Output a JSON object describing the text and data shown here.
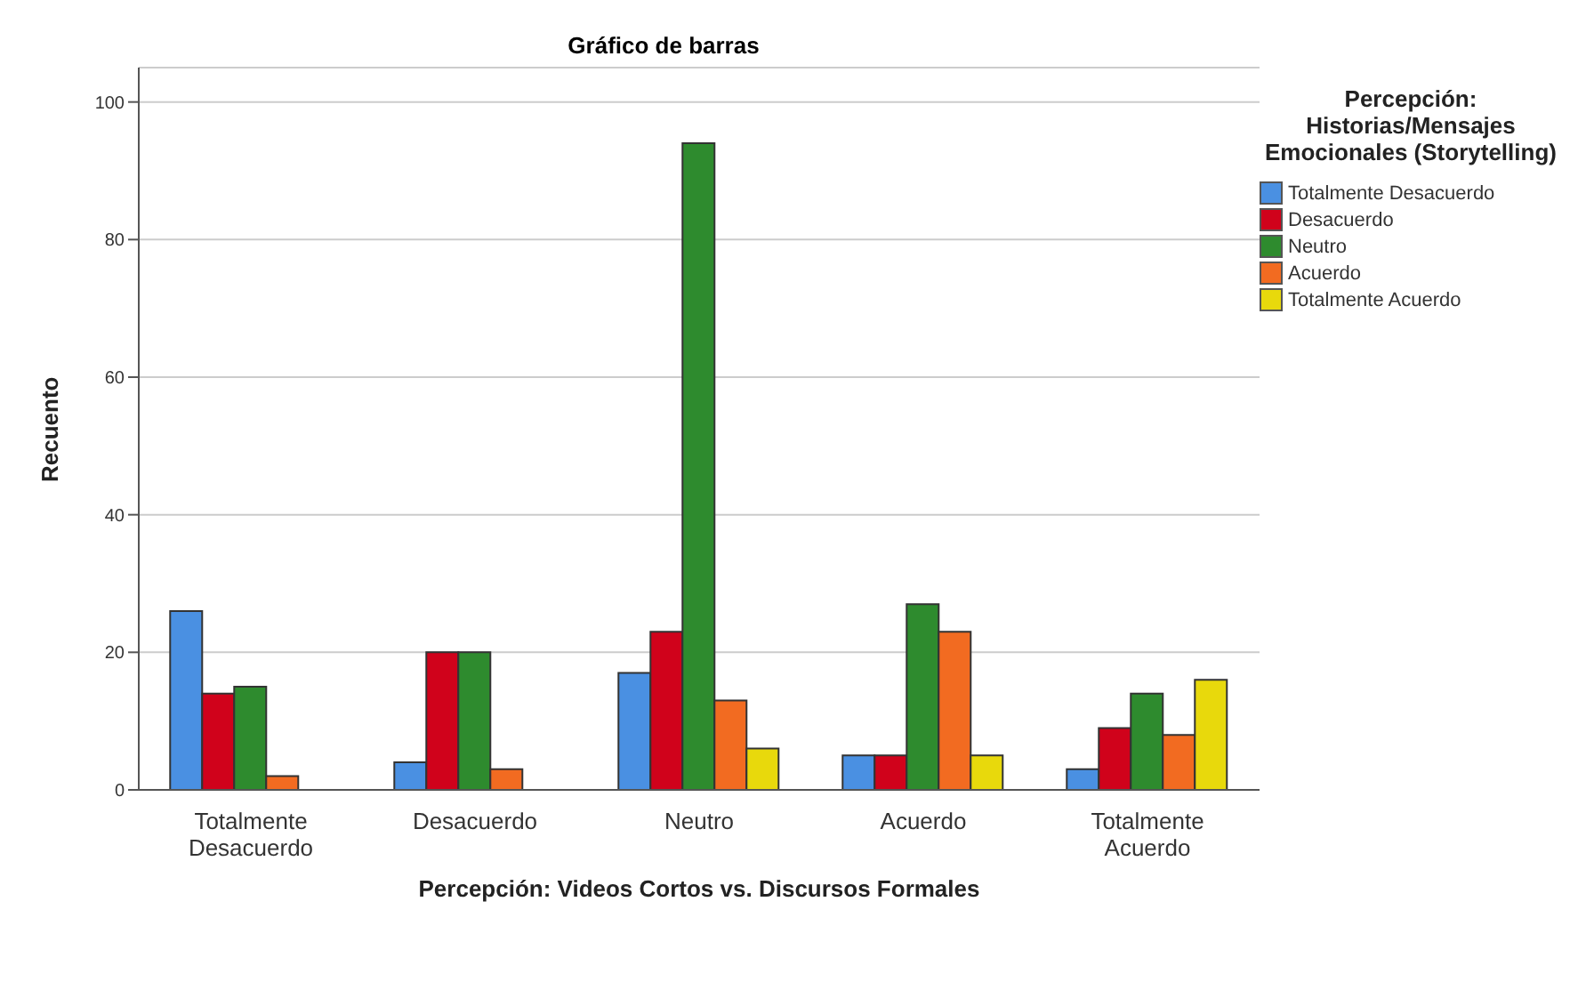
{
  "chart_data": {
    "type": "bar",
    "title": "Gráfico de barras",
    "xlabel": "Percepción: Videos Cortos vs. Discursos Formales",
    "ylabel": "Recuento",
    "legend_title": "Percepción: Historias/Mensajes Emocionales (Storytelling)",
    "categories": [
      "Totalmente Desacuerdo",
      "Desacuerdo",
      "Neutro",
      "Acuerdo",
      "Totalmente Acuerdo"
    ],
    "series": [
      {
        "name": "Totalmente Desacuerdo",
        "color": "#4a90e2",
        "values": [
          26,
          4,
          17,
          5,
          3
        ]
      },
      {
        "name": "Desacuerdo",
        "color": "#d0021b",
        "values": [
          14,
          20,
          23,
          5,
          9
        ]
      },
      {
        "name": "Neutro",
        "color": "#2e8b2e",
        "values": [
          15,
          20,
          94,
          27,
          14
        ]
      },
      {
        "name": "Acuerdo",
        "color": "#f26b21",
        "values": [
          2,
          3,
          13,
          23,
          8
        ]
      },
      {
        "name": "Totalmente Acuerdo",
        "color": "#e8d90c",
        "values": [
          0,
          0,
          6,
          5,
          16
        ]
      }
    ],
    "ylim": [
      0,
      105
    ],
    "yticks": [
      0,
      20,
      40,
      60,
      80,
      100
    ],
    "grid": "y",
    "legend": "right"
  }
}
